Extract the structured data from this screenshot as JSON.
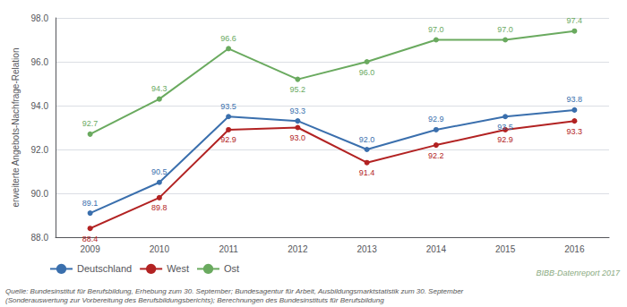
{
  "chart_data": {
    "type": "line",
    "ylabel": "erweiterte Angebots-Nachfrage-Relation",
    "categories": [
      "2009",
      "2010",
      "2011",
      "2012",
      "2013",
      "2014",
      "2015",
      "2016"
    ],
    "series": [
      {
        "name": "Deutschland",
        "color": "#3a6fad",
        "values": [
          89.1,
          90.5,
          93.5,
          93.3,
          92.0,
          92.9,
          93.5,
          93.8
        ],
        "value_labels": [
          "89.1",
          "90.5",
          "93.5",
          "93.3",
          "92.0",
          "92.9",
          "93.5",
          "93.8"
        ]
      },
      {
        "name": "West",
        "color": "#b22222",
        "values": [
          88.4,
          89.8,
          92.9,
          93.0,
          91.4,
          92.2,
          92.9,
          93.3
        ],
        "value_labels": [
          "88.4",
          "89.8",
          "92.9",
          "93.0",
          "91.4",
          "92.2",
          "92.9",
          "93.3"
        ]
      },
      {
        "name": "Ost",
        "color": "#6aaa5f",
        "values": [
          92.7,
          94.3,
          96.6,
          95.2,
          96.0,
          97.0,
          97.0,
          97.4
        ],
        "value_labels": [
          "92.7",
          "94.3",
          "96.6",
          "95.2",
          "96.0",
          "97.0",
          "97.0",
          "97.4"
        ]
      }
    ],
    "ylim": [
      88,
      98
    ],
    "yticks": [
      {
        "value": 88,
        "label": "88.0"
      },
      {
        "value": 90,
        "label": "90.0"
      },
      {
        "value": 92,
        "label": "92.0"
      },
      {
        "value": 94,
        "label": "94.0"
      },
      {
        "value": 96,
        "label": "96.0"
      },
      {
        "value": 98,
        "label": "98.0"
      }
    ],
    "grid": true,
    "legend": "bottom",
    "data_labels": true,
    "marker": "circle",
    "annotations": [
      "Quelle: Bundesinstitut für Berufsbildung, Erhebung zum 30. September; Bundesagentur für Arbeit, Ausbildungsmarktstatistik zum 30. September\n(Sonderauswertung zur Vorbereitung des Berufsbildungsberichts); Berechnungen des Bundesinstituts für Berufsbildung",
      "BIBB-Datenreport 2017"
    ]
  }
}
